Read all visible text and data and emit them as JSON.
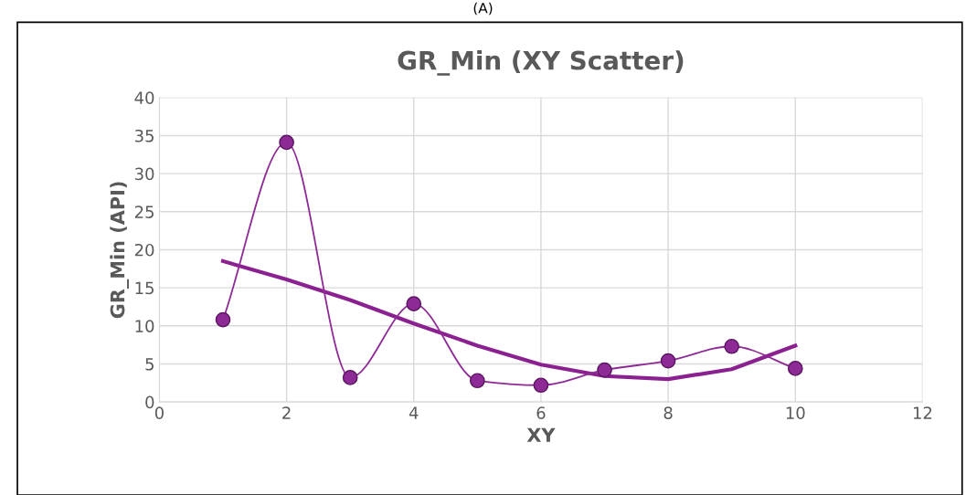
{
  "chart_data": {
    "type": "line",
    "title": "GR_Min (XY Scatter)",
    "xlabel": "XY",
    "ylabel": "GR_Min (API)",
    "annotations": [
      "(A)"
    ],
    "xlim": [
      0,
      12
    ],
    "xticks": [
      0,
      2,
      4,
      6,
      8,
      10,
      12
    ],
    "ylim": [
      0,
      40
    ],
    "yticks": [
      0,
      5,
      10,
      15,
      20,
      25,
      30,
      35,
      40
    ],
    "grid": true,
    "line_style": "solid",
    "series": [
      {
        "marker": "circle",
        "color": "#8e2a96",
        "x": [
          1,
          2,
          3,
          4,
          5,
          6,
          7,
          8,
          9,
          10
        ],
        "values": [
          10.8,
          34.1,
          3.2,
          12.9,
          2.8,
          2.2,
          4.2,
          5.4,
          7.3,
          4.4
        ]
      },
      {
        "marker": "none",
        "color": "#8b2191",
        "x": [
          1,
          2,
          3,
          4,
          5,
          6,
          7,
          8,
          9,
          10
        ],
        "values": [
          18.5,
          16.1,
          13.4,
          10.3,
          7.4,
          4.9,
          3.4,
          3.0,
          4.3,
          7.4
        ]
      }
    ]
  }
}
